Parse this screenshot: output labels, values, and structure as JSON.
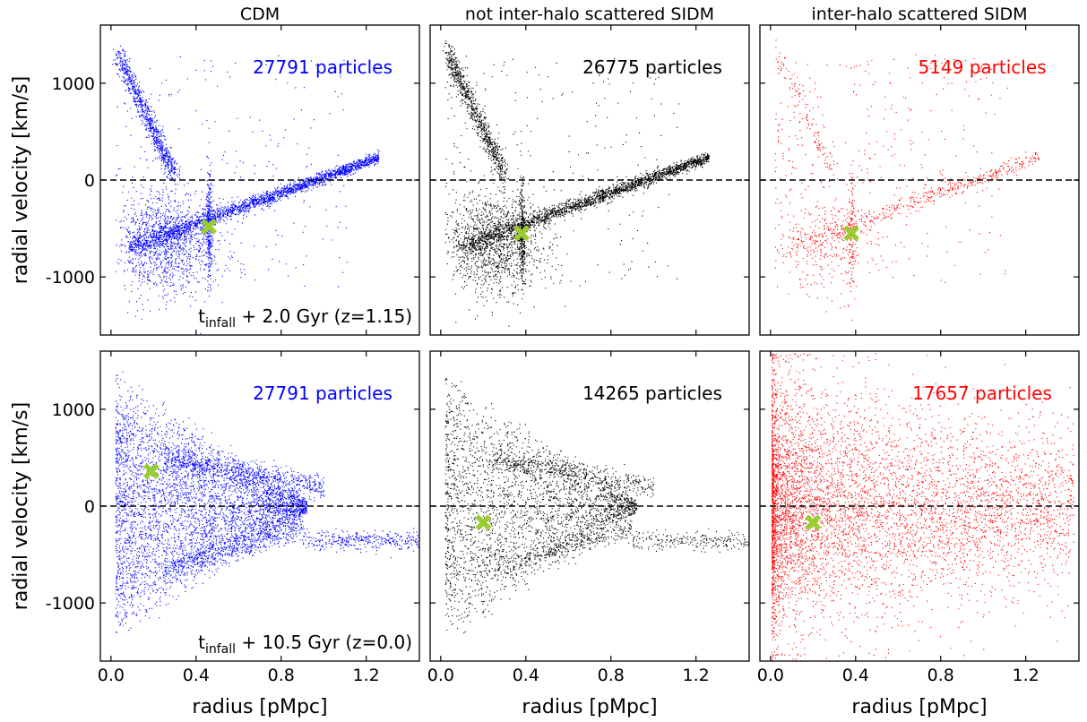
{
  "chart_data": {
    "type": "scatter",
    "columns": [
      {
        "title": "CDM",
        "color": "#0000ff"
      },
      {
        "title": "not inter-halo scattered SIDM",
        "color": "#000000"
      },
      {
        "title": "inter-halo scattered SIDM",
        "color": "#ff0000"
      }
    ],
    "rows": [
      {
        "time_prefix": "t",
        "time_sub": "infall",
        "time_rest": " + 2.0 Gyr (z=1.15)"
      },
      {
        "time_prefix": "t",
        "time_sub": "infall",
        "time_rest": " + 10.5 Gyr (z=0.0)"
      }
    ],
    "xlabel": "radius [pMpc]",
    "ylabel": "radial velocity [km/s]",
    "xlim": [
      -0.05,
      1.45
    ],
    "ylim": [
      -1600,
      1600
    ],
    "xticks": [
      0.0,
      0.4,
      0.8,
      1.2
    ],
    "xtick_labels": [
      "0.0",
      "0.4",
      "0.8",
      "1.2"
    ],
    "yticks": [
      -1000,
      0,
      1000
    ],
    "ytick_labels": [
      "-1000",
      "0",
      "1000"
    ],
    "reference_line": {
      "y": 0,
      "style": "dashed"
    },
    "marker_color": "#9acd32",
    "panels": [
      {
        "row": 0,
        "col": 0,
        "particles_label": "27791 particles",
        "marker": {
          "x": 0.46,
          "y": -480
        },
        "morphology": "stream_infall"
      },
      {
        "row": 0,
        "col": 1,
        "particles_label": "26775 particles",
        "marker": {
          "x": 0.38,
          "y": -550
        },
        "morphology": "stream_infall"
      },
      {
        "row": 0,
        "col": 2,
        "particles_label": "5149 particles",
        "marker": {
          "x": 0.38,
          "y": -550
        },
        "morphology": "stream_infall_sparse"
      },
      {
        "row": 1,
        "col": 0,
        "particles_label": "27791 particles",
        "marker": {
          "x": 0.19,
          "y": 360
        },
        "morphology": "phase_mixed"
      },
      {
        "row": 1,
        "col": 1,
        "particles_label": "14265 particles",
        "marker": {
          "x": 0.2,
          "y": -170
        },
        "morphology": "phase_mixed"
      },
      {
        "row": 1,
        "col": 2,
        "particles_label": "17657 particles",
        "marker": {
          "x": 0.2,
          "y": -170
        },
        "morphology": "diffuse"
      }
    ]
  }
}
